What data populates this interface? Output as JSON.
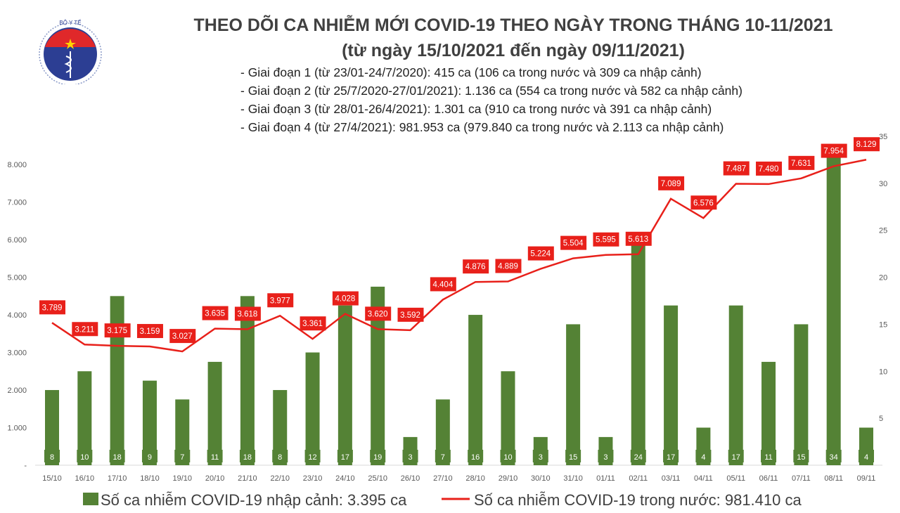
{
  "header": {
    "logo_text": "BỘ Y TẾ · MINISTRY OF HEALTH",
    "title": "THEO DÕI CA NHIỄM MỚI COVID-19 THEO NGÀY TRONG THÁNG 10-11/2021",
    "subtitle": "(từ ngày 15/10/2021 đến ngày 09/11/2021)",
    "phases": [
      "- Giai đoạn 1 (từ 23/01-24/7/2020): 415 ca (106 ca trong nước và 309 ca nhập cảnh)",
      "- Giai đoạn 2 (từ 25/7/2020-27/01/2021): 1.136 ca (554 ca trong nước và 582 ca nhập cảnh)",
      "- Giai đoạn 3 (từ 28/01-26/4/2021): 1.301 ca (910 ca trong nước và 391 ca nhập cảnh)",
      "- Giai đoạn 4 (từ 27/4/2021): 981.953 ca (979.840 ca trong nước và 2.113 ca nhập cảnh)"
    ]
  },
  "chart_data": {
    "type": "bar+line",
    "categories": [
      "15/10",
      "16/10",
      "17/10",
      "18/10",
      "19/10",
      "20/10",
      "21/10",
      "22/10",
      "23/10",
      "24/10",
      "25/10",
      "26/10",
      "27/10",
      "28/10",
      "29/10",
      "30/10",
      "31/10",
      "01/11",
      "02/11",
      "03/11",
      "04/11",
      "05/11",
      "06/11",
      "07/11",
      "08/11",
      "09/11"
    ],
    "series": [
      {
        "name": "Số ca nhiễm COVID-19 nhập cảnh: 3.395 ca",
        "type": "bar",
        "axis": "right",
        "color": "#548235",
        "values": [
          8,
          10,
          18,
          9,
          7,
          11,
          18,
          8,
          12,
          17,
          19,
          3,
          7,
          16,
          10,
          3,
          15,
          3,
          24,
          17,
          4,
          17,
          11,
          15,
          34,
          4
        ],
        "labels": [
          "8",
          "10",
          "18",
          "9",
          "7",
          "11",
          "18",
          "8",
          "12",
          "17",
          "19",
          "3",
          "7",
          "16",
          "10",
          "3",
          "15",
          "3",
          "24",
          "17",
          "4",
          "17",
          "11",
          "15",
          "34",
          "4"
        ]
      },
      {
        "name": "Số ca nhiễm COVID-19 trong nước: 981.410 ca",
        "type": "line",
        "axis": "left",
        "color": "#e8201a",
        "values": [
          3789,
          3211,
          3175,
          3159,
          3027,
          3635,
          3618,
          3977,
          3361,
          4028,
          3620,
          3592,
          4404,
          4876,
          4889,
          5224,
          5504,
          5595,
          5613,
          7089,
          6576,
          7487,
          7480,
          7631,
          7954,
          8129
        ],
        "labels": [
          "3.789",
          "3.211",
          "3.175",
          "3.159",
          "3.027",
          "3.635",
          "3.618",
          "3.977",
          "3.361",
          "4.028",
          "3.620",
          "3.592",
          "4.404",
          "4.876",
          "4.889",
          "5.224",
          "5.504",
          "5.595",
          "5.613",
          "7.089",
          "6.576",
          "7.487",
          "7.480",
          "7.631",
          "7.954",
          "8.129"
        ]
      }
    ],
    "left_axis": {
      "ylim": [
        0,
        8750
      ],
      "ticks": [
        0,
        1000,
        2000,
        3000,
        4000,
        5000,
        6000,
        7000,
        8000
      ],
      "tick_labels": [
        "-",
        "1.000",
        "2.000",
        "3.000",
        "4.000",
        "5.000",
        "6.000",
        "7.000",
        "8.000"
      ]
    },
    "right_axis": {
      "ylim": [
        0,
        35
      ],
      "ticks": [
        5,
        10,
        15,
        20,
        25,
        30,
        35
      ],
      "tick_labels": [
        "5",
        "10",
        "15",
        "20",
        "25",
        "30",
        "35"
      ]
    },
    "grid": false,
    "legend": "bottom"
  }
}
